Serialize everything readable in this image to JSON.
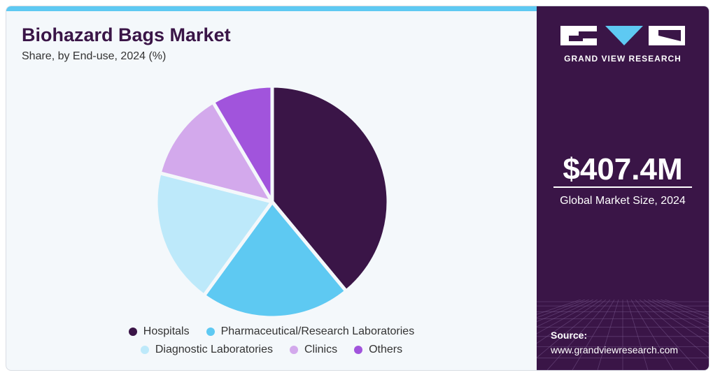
{
  "chart": {
    "title": "Biohazard Bags Market",
    "subtitle": "Share, by End-use, 2024 (%)"
  },
  "colors": {
    "accent_bar": "#5ec9f2",
    "panel_bg": "#3a1547",
    "title": "#3a1547"
  },
  "chart_data": {
    "type": "pie",
    "title": "Biohazard Bags Market",
    "subtitle": "Share, by End-use, 2024 (%)",
    "categories": [
      "Hospitals",
      "Pharmaceutical/Research Laboratories",
      "Diagnostic Laboratories",
      "Clinics",
      "Others"
    ],
    "values": [
      39,
      21,
      19,
      12.5,
      8.5
    ],
    "colors": [
      "#3a1547",
      "#5ec9f2",
      "#bde9fa",
      "#d3a9ec",
      "#a154dc"
    ],
    "start_angle_deg": 0,
    "direction": "clockwise",
    "legend_position": "bottom"
  },
  "legend": {
    "rows": [
      [
        {
          "label": "Hospitals",
          "color": "#3a1547"
        },
        {
          "label": "Pharmaceutical/Research Laboratories",
          "color": "#5ec9f2"
        }
      ],
      [
        {
          "label": "Diagnostic Laboratories",
          "color": "#bde9fa"
        },
        {
          "label": "Clinics",
          "color": "#d3a9ec"
        },
        {
          "label": "Others",
          "color": "#a154dc"
        }
      ]
    ]
  },
  "panel": {
    "brand": "GRAND VIEW RESEARCH",
    "logo_icon": "gvr-logo-icon",
    "market_size": "$407.4M",
    "market_size_label": "Global Market Size, 2024",
    "source_title": "Source:",
    "source_url": "www.grandviewresearch.com"
  }
}
